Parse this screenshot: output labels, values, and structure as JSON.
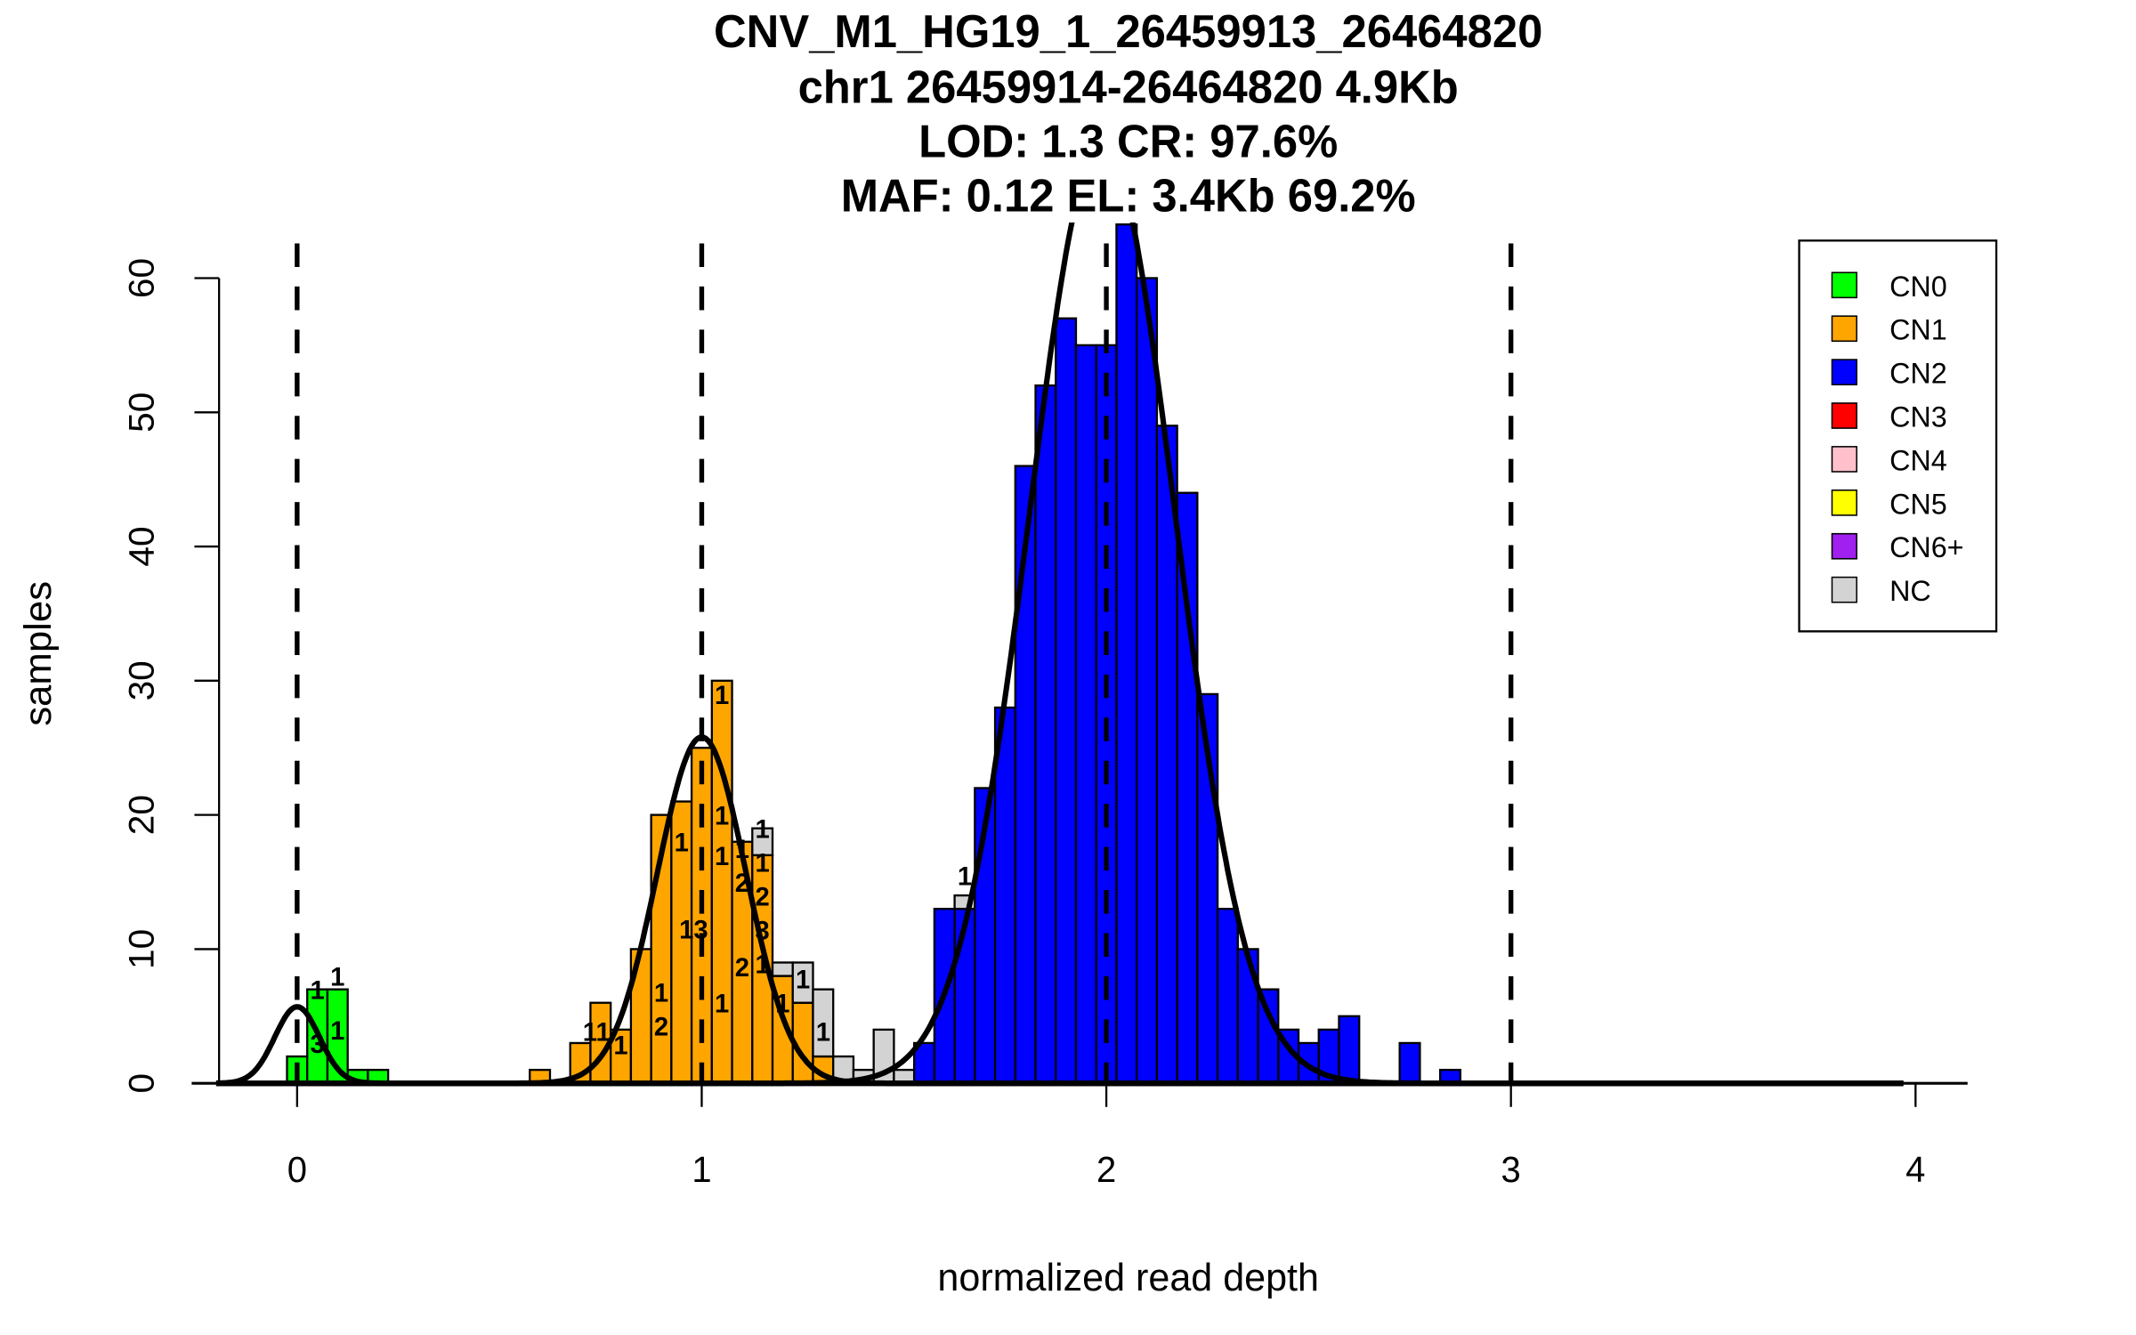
{
  "chart_data": {
    "type": "bar",
    "title_lines": [
      "CNV_M1_HG19_1_26459913_26464820",
      "chr1 26459914-26464820 4.9Kb",
      "LOD: 1.3 CR: 97.6%",
      "MAF: 0.12 EL: 3.4Kb 69.2%"
    ],
    "xlabel": "normalized read depth",
    "ylabel": "samples",
    "xlim": [
      -0.2,
      4.1
    ],
    "ylim": [
      0,
      64
    ],
    "xticks": [
      "0",
      "1",
      "2",
      "3",
      "4"
    ],
    "yticks": [
      "0",
      "10",
      "20",
      "30",
      "40",
      "50",
      "60"
    ],
    "bin_width": 0.05,
    "dashed_lines_x": [
      0,
      1,
      2,
      3
    ],
    "legend": {
      "placement": "top-right",
      "entries": [
        {
          "label": "CN0",
          "color": "#00FF00"
        },
        {
          "label": "CN1",
          "color": "#FFA500"
        },
        {
          "label": "CN2",
          "color": "#0000FF"
        },
        {
          "label": "CN3",
          "color": "#FF0000"
        },
        {
          "label": "CN4",
          "color": "#FFC0CB"
        },
        {
          "label": "CN5",
          "color": "#FFFF00"
        },
        {
          "label": "CN6+",
          "color": "#A020F0"
        },
        {
          "label": "NC",
          "color": "#D3D3D3"
        }
      ]
    },
    "bins": [
      {
        "x": 0.0,
        "stack": [
          [
            "CN0",
            2
          ]
        ]
      },
      {
        "x": 0.05,
        "stack": [
          [
            "CN0",
            7
          ]
        ]
      },
      {
        "x": 0.1,
        "stack": [
          [
            "CN0",
            7
          ]
        ]
      },
      {
        "x": 0.15,
        "stack": [
          [
            "CN0",
            1
          ]
        ]
      },
      {
        "x": 0.2,
        "stack": [
          [
            "CN0",
            1
          ]
        ]
      },
      {
        "x": 0.6,
        "stack": [
          [
            "CN1",
            1
          ]
        ]
      },
      {
        "x": 0.7,
        "stack": [
          [
            "CN1",
            3
          ]
        ]
      },
      {
        "x": 0.75,
        "stack": [
          [
            "CN1",
            6
          ]
        ]
      },
      {
        "x": 0.8,
        "stack": [
          [
            "CN1",
            4
          ]
        ]
      },
      {
        "x": 0.85,
        "stack": [
          [
            "CN1",
            10
          ]
        ]
      },
      {
        "x": 0.9,
        "stack": [
          [
            "CN1",
            20
          ]
        ]
      },
      {
        "x": 0.95,
        "stack": [
          [
            "CN1",
            21
          ]
        ]
      },
      {
        "x": 1.0,
        "stack": [
          [
            "CN1",
            25
          ]
        ]
      },
      {
        "x": 1.05,
        "stack": [
          [
            "CN1",
            30
          ]
        ]
      },
      {
        "x": 1.1,
        "stack": [
          [
            "CN1",
            18
          ]
        ]
      },
      {
        "x": 1.15,
        "stack": [
          [
            "CN1",
            17
          ],
          [
            "NC",
            2
          ]
        ]
      },
      {
        "x": 1.2,
        "stack": [
          [
            "CN1",
            8
          ],
          [
            "NC",
            1
          ]
        ]
      },
      {
        "x": 1.25,
        "stack": [
          [
            "CN1",
            6
          ],
          [
            "NC",
            3
          ]
        ]
      },
      {
        "x": 1.3,
        "stack": [
          [
            "CN1",
            2
          ],
          [
            "NC",
            5
          ]
        ]
      },
      {
        "x": 1.35,
        "stack": [
          [
            "NC",
            2
          ]
        ]
      },
      {
        "x": 1.4,
        "stack": [
          [
            "NC",
            1
          ]
        ]
      },
      {
        "x": 1.45,
        "stack": [
          [
            "NC",
            4
          ]
        ]
      },
      {
        "x": 1.5,
        "stack": [
          [
            "NC",
            1
          ]
        ]
      },
      {
        "x": 1.55,
        "stack": [
          [
            "CN2",
            3
          ]
        ]
      },
      {
        "x": 1.6,
        "stack": [
          [
            "CN2",
            13
          ]
        ]
      },
      {
        "x": 1.65,
        "stack": [
          [
            "CN2",
            13
          ],
          [
            "NC",
            1
          ]
        ]
      },
      {
        "x": 1.7,
        "stack": [
          [
            "CN2",
            22
          ]
        ]
      },
      {
        "x": 1.75,
        "stack": [
          [
            "CN2",
            28
          ]
        ]
      },
      {
        "x": 1.8,
        "stack": [
          [
            "CN2",
            46
          ]
        ]
      },
      {
        "x": 1.85,
        "stack": [
          [
            "CN2",
            52
          ]
        ]
      },
      {
        "x": 1.9,
        "stack": [
          [
            "CN2",
            57
          ]
        ]
      },
      {
        "x": 1.95,
        "stack": [
          [
            "CN2",
            55
          ]
        ]
      },
      {
        "x": 2.0,
        "stack": [
          [
            "CN2",
            55
          ]
        ]
      },
      {
        "x": 2.05,
        "stack": [
          [
            "CN2",
            64
          ]
        ]
      },
      {
        "x": 2.1,
        "stack": [
          [
            "CN2",
            60
          ]
        ]
      },
      {
        "x": 2.15,
        "stack": [
          [
            "CN2",
            49
          ]
        ]
      },
      {
        "x": 2.2,
        "stack": [
          [
            "CN2",
            44
          ]
        ]
      },
      {
        "x": 2.25,
        "stack": [
          [
            "CN2",
            29
          ]
        ]
      },
      {
        "x": 2.3,
        "stack": [
          [
            "CN2",
            13
          ]
        ]
      },
      {
        "x": 2.35,
        "stack": [
          [
            "CN2",
            10
          ]
        ]
      },
      {
        "x": 2.4,
        "stack": [
          [
            "CN2",
            7
          ]
        ]
      },
      {
        "x": 2.45,
        "stack": [
          [
            "CN2",
            4
          ]
        ]
      },
      {
        "x": 2.5,
        "stack": [
          [
            "CN2",
            3
          ]
        ]
      },
      {
        "x": 2.55,
        "stack": [
          [
            "CN2",
            4
          ]
        ]
      },
      {
        "x": 2.6,
        "stack": [
          [
            "CN2",
            5
          ]
        ]
      },
      {
        "x": 2.75,
        "stack": [
          [
            "CN2",
            3
          ]
        ]
      },
      {
        "x": 2.85,
        "stack": [
          [
            "CN2",
            1
          ]
        ]
      }
    ],
    "fits": [
      {
        "name": "CN0",
        "mean": 0.0,
        "sd": 0.055,
        "peak": 5.7
      },
      {
        "name": "CN1",
        "mean": 1.0,
        "sd": 0.11,
        "peak": 25.8
      },
      {
        "name": "CN2",
        "mean": 1.99,
        "sd": 0.18,
        "peak": 70
      }
    ],
    "annotations": [
      {
        "text": "1",
        "x": 0.05,
        "y": 7
      },
      {
        "text": "1",
        "x": 0.1,
        "y": 8
      },
      {
        "text": "3",
        "x": 0.05,
        "y": 3
      },
      {
        "text": "1",
        "x": 0.1,
        "y": 4
      },
      {
        "text": "1",
        "x": 1.05,
        "y": 29
      },
      {
        "text": "1",
        "x": 0.95,
        "y": 18
      },
      {
        "text": "1",
        "x": 1.05,
        "y": 20
      },
      {
        "text": "1",
        "x": 1.05,
        "y": 17
      },
      {
        "text": "1",
        "x": 1.1,
        "y": 17.5
      },
      {
        "text": "1",
        "x": 1.15,
        "y": 19
      },
      {
        "text": "1",
        "x": 1.15,
        "y": 17.5
      },
      {
        "text": "2",
        "x": 1.1,
        "y": 15
      },
      {
        "text": "2",
        "x": 1.15,
        "y": 15
      },
      {
        "text": "3",
        "x": 1.15,
        "y": 13
      },
      {
        "text": "1",
        "x": 1.15,
        "y": 12
      },
      {
        "text": "13",
        "x": 0.98,
        "y": 11.5
      },
      {
        "text": "1",
        "x": 0.9,
        "y": 6.8
      },
      {
        "text": "2",
        "x": 0.9,
        "y": 4.8
      },
      {
        "text": "2",
        "x": 1.1,
        "y": 8.7
      },
      {
        "text": "1",
        "x": 1.05,
        "y": 6
      },
      {
        "text": "1",
        "x": 1.2,
        "y": 6
      },
      {
        "text": "1",
        "x": 1.25,
        "y": 7.8
      },
      {
        "text": "1",
        "x": 1.3,
        "y": 3.9
      },
      {
        "text": "11",
        "x": 0.74,
        "y": 3.9
      },
      {
        "text": "1",
        "x": 0.8,
        "y": 2.9
      },
      {
        "text": "1",
        "x": 1.65,
        "y": 15.5
      }
    ]
  }
}
